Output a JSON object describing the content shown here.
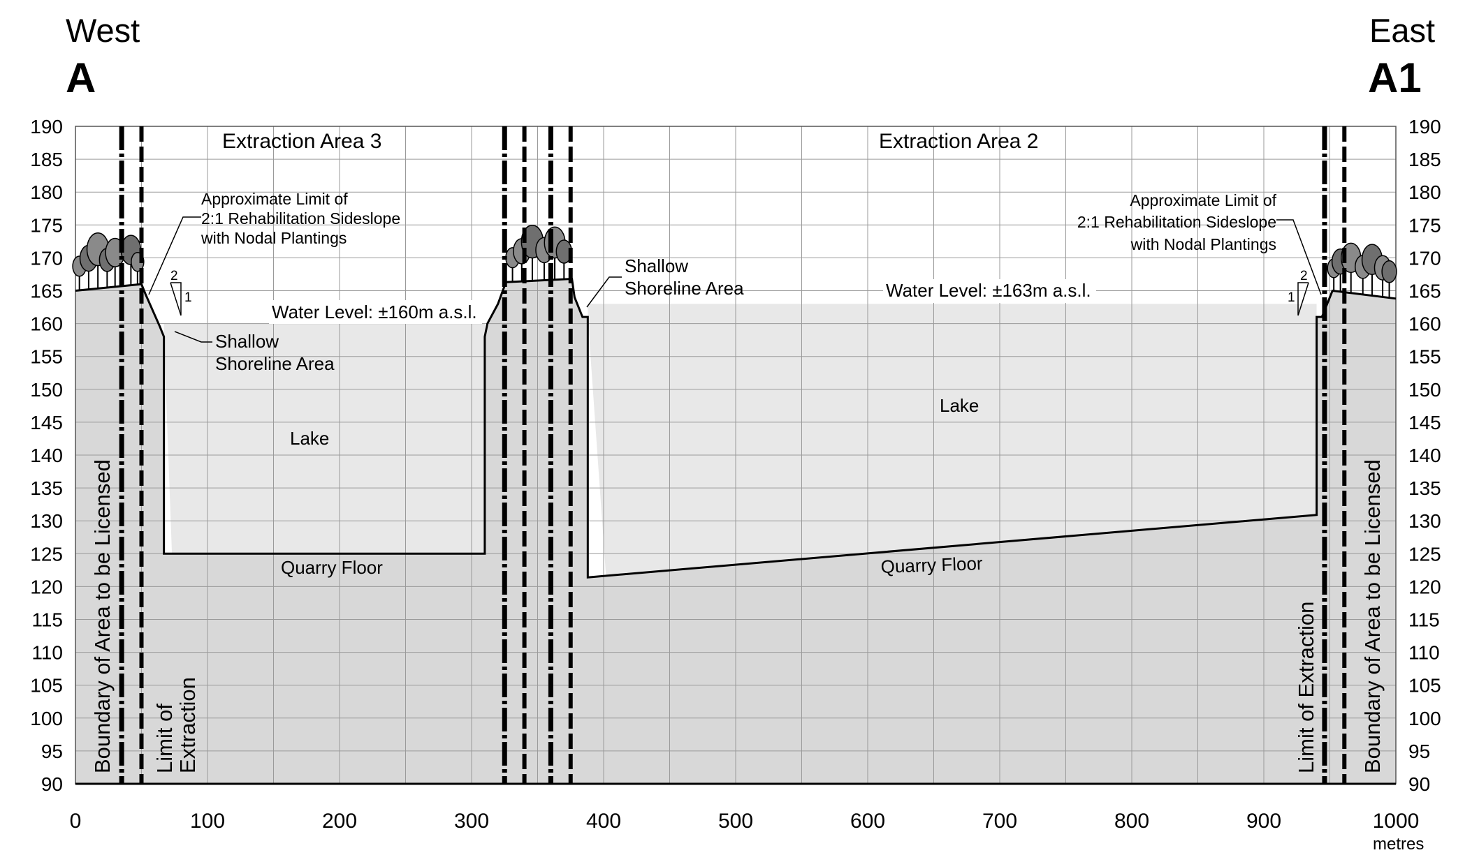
{
  "header": {
    "west_word": "West",
    "west_letter": "A",
    "east_word": "East",
    "east_letter": "A1"
  },
  "axes": {
    "y_min": 90,
    "y_max": 190,
    "y_step": 5,
    "x_min": 0,
    "x_max": 1000,
    "x_label_step": 100,
    "x_unit": "metres",
    "y_ticks": [
      "190",
      "185",
      "180",
      "175",
      "170",
      "165",
      "160",
      "155",
      "150",
      "145",
      "140",
      "135",
      "130",
      "125",
      "120",
      "115",
      "110",
      "105",
      "100",
      "95",
      "90"
    ],
    "x_ticks": [
      "0",
      "100",
      "200",
      "300",
      "400",
      "500",
      "600",
      "700",
      "800",
      "900",
      "1000"
    ]
  },
  "areas": {
    "area3_title": "Extraction Area 3",
    "area2_title": "Extraction Area 2"
  },
  "labels": {
    "limit_sideslope_west": [
      "Approximate Limit of",
      "2:1 Rehabilitation Sideslope",
      "with Nodal Plantings"
    ],
    "limit_sideslope_east": [
      "Approximate Limit of",
      "2:1 Rehabilitation Sideslope",
      "with Nodal Plantings"
    ],
    "shoreline_west": [
      "Shallow",
      "Shoreline Area"
    ],
    "shoreline_east": [
      "Shallow",
      "Shoreline Area"
    ],
    "water_level_west": "Water Level: ±160m a.s.l.",
    "water_level_east": "Water Level: ±163m a.s.l.",
    "lake_west": "Lake",
    "lake_east": "Lake",
    "quarry_floor_west": "Quarry Floor",
    "quarry_floor_east": "Quarry Floor",
    "boundary_west": "Boundary of Area to be Licensed",
    "boundary_east": "Boundary of Area to be Licensed",
    "limit_extraction_west": [
      "Limit of",
      "Extraction"
    ],
    "limit_extraction_east": "Limit of Extraction",
    "slope_run": "2",
    "slope_rise": "1"
  },
  "profile": {
    "ground_points": [
      [
        0,
        165
      ],
      [
        50,
        166
      ],
      [
        53,
        164.5
      ],
      [
        64,
        159.5
      ],
      [
        67,
        158
      ],
      [
        67,
        125
      ],
      [
        310,
        125
      ],
      [
        310,
        158
      ],
      [
        312,
        160
      ],
      [
        320,
        163
      ],
      [
        326,
        166.3
      ],
      [
        376,
        166.8
      ],
      [
        378,
        164
      ],
      [
        384,
        161
      ],
      [
        388,
        161
      ],
      [
        388,
        121.4
      ],
      [
        940,
        130.9
      ],
      [
        940,
        161
      ],
      [
        944,
        161
      ],
      [
        950,
        164
      ],
      [
        952,
        165
      ],
      [
        1000,
        163.8
      ]
    ],
    "west_water_level": 160,
    "east_water_level": 163,
    "west_lake_x": [
      67,
      310
    ],
    "east_lake_x": [
      388,
      940
    ],
    "dash_dot_lines_x": [
      35,
      325,
      360,
      946
    ],
    "dashed_lines_x": [
      50,
      340,
      375,
      961
    ],
    "colors": {
      "ground": "#d8d8d8",
      "water": "#e8e8e8",
      "grid": "#9a9a9a",
      "line": "#000000",
      "tree": "#8a8a8a"
    }
  }
}
